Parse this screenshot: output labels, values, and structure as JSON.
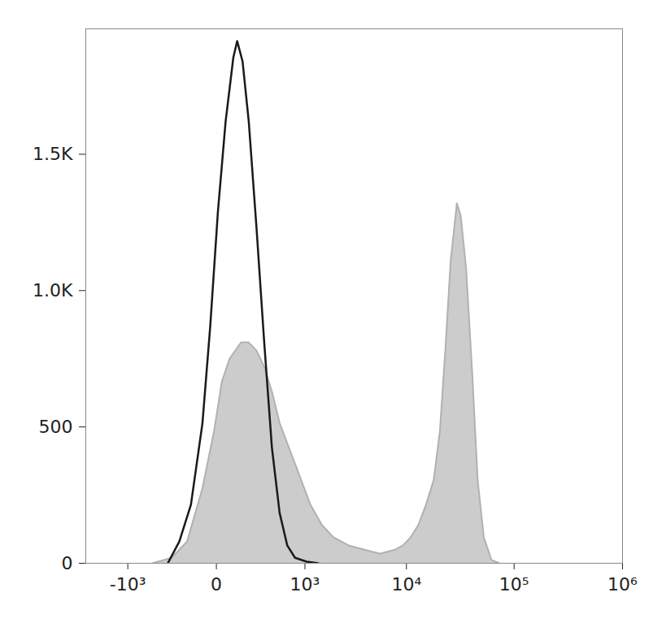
{
  "chart_data": {
    "type": "line",
    "log": "x",
    "xlim": [
      -2700,
      1000000
    ],
    "xticks": [
      {
        "value": -1000,
        "label": "-10³"
      },
      0,
      {
        "value": 1000,
        "label": "10³"
      },
      {
        "value": 10000,
        "label": "10⁴"
      },
      {
        "value": 100000,
        "label": "10⁵"
      },
      {
        "value": 1000000,
        "label": "10⁶"
      }
    ],
    "ylim": [
      0,
      1960
    ],
    "yticks": [
      0,
      500,
      {
        "value": 1000,
        "label": "1.0K"
      },
      {
        "value": 1500,
        "label": "1.5K"
      }
    ],
    "series": [
      {
        "type": "area",
        "color": "#cccccc",
        "x": [
          -520,
          -285,
          -155,
          -62,
          -9,
          22,
          58,
          124,
          178,
          242,
          317,
          405,
          509,
          631,
          776,
          945,
          1145,
          1514,
          1985,
          2824,
          3987,
          5600,
          7839,
          9266,
          10945,
          12925,
          15250,
          17985,
          20540,
          23050,
          25880,
          29520,
          32060,
          35980,
          41060,
          46010,
          52450,
          61810,
          72810
        ],
        "values": [
          0,
          20,
          80,
          275,
          485,
          665,
          750,
          810,
          810,
          780,
          720,
          630,
          515,
          440,
          365,
          290,
          215,
          140,
          95,
          65,
          50,
          35,
          50,
          65,
          95,
          140,
          215,
          305,
          485,
          780,
          1110,
          1320,
          1275,
          1080,
          690,
          305,
          95,
          12,
          0
        ]
      },
      {
        "type": "line",
        "color": "#1a1a1a",
        "x": [
          -325,
          -215,
          -129,
          -62,
          -25,
          6,
          39,
          78,
          100,
          134,
          178,
          242,
          317,
          405,
          509,
          631,
          776,
          1041,
          1381
        ],
        "values": [
          0,
          80,
          215,
          513,
          870,
          1290,
          1620,
          1855,
          1915,
          1840,
          1620,
          1230,
          810,
          425,
          185,
          65,
          20,
          6,
          0
        ]
      }
    ]
  }
}
